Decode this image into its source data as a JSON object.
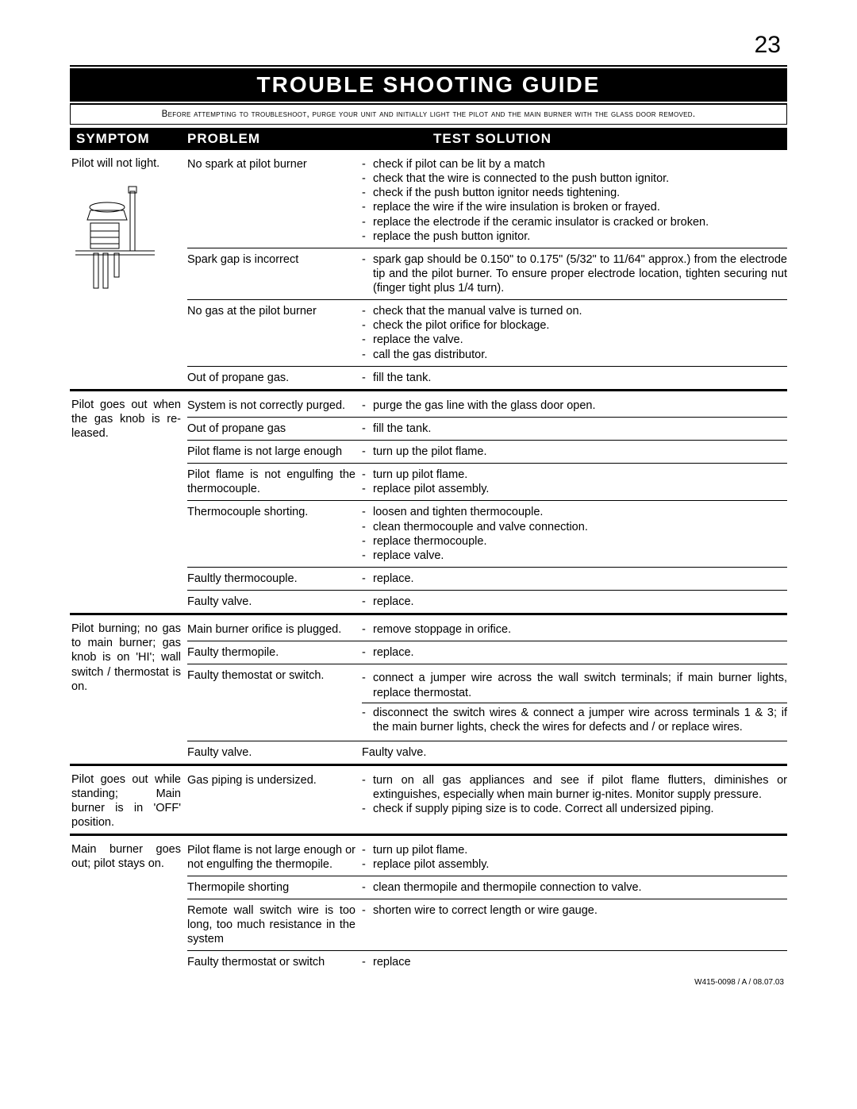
{
  "page_number": "23",
  "title": "TROUBLE SHOOTING GUIDE",
  "intro": "Before attempting to troubleshoot, purge your unit and initially light the pilot and the main burner with the glass door removed.",
  "headers": {
    "symptom": "SYMPTOM",
    "problem": "PROBLEM",
    "solution": "TEST SOLUTION"
  },
  "footer": "W415-0098 / A / 08.07.03",
  "sections": [
    {
      "symptom": "Pilot will not light.",
      "has_diagram": true,
      "rows": [
        {
          "problem": "No spark at pilot burner",
          "solutions": [
            "check if pilot can be lit by a match",
            "check that the wire is connected to the push button ignitor.",
            "check if the push button ignitor needs tightening.",
            "replace the wire if the wire insulation is broken or frayed.",
            "replace the electrode if the ceramic insulator is cracked or broken.",
            "replace the push button ignitor."
          ]
        },
        {
          "problem": "Spark gap is incorrect",
          "solutions": [
            "spark gap should be 0.150\" to 0.175\" (5/32\" to 11/64\" approx.) from the electrode tip and the pilot burner. To ensure proper electrode location, tighten securing nut (finger tight plus 1/4 turn)."
          ]
        },
        {
          "problem": "No gas at the pilot burner",
          "solutions": [
            "check that the manual valve is turned on.",
            "check the pilot orifice for blockage.",
            "replace the valve.",
            "call the gas distributor."
          ]
        },
        {
          "problem": "Out of propane gas.",
          "solutions": [
            "fill the tank."
          ]
        }
      ]
    },
    {
      "symptom": "Pilot goes out when the gas knob is re-leased.",
      "rows": [
        {
          "problem": "System is not correctly purged.",
          "solutions": [
            "purge the gas line with the glass door open."
          ]
        },
        {
          "problem": "Out of propane gas",
          "solutions": [
            "fill the tank."
          ]
        },
        {
          "problem": "Pilot flame is not large enough",
          "solutions": [
            "turn up the pilot flame."
          ]
        },
        {
          "problem": "Pilot flame is not engulfing the thermocouple.",
          "solutions": [
            "turn up pilot flame.",
            "replace pilot assembly."
          ]
        },
        {
          "problem": "Thermocouple shorting.",
          "solutions": [
            "loosen and tighten thermocouple.",
            "clean thermocouple and valve connection.",
            "replace thermocouple.",
            "replace valve."
          ]
        },
        {
          "problem": "Faultly thermocouple.",
          "solutions": [
            "replace."
          ]
        },
        {
          "problem": "Faulty valve.",
          "solutions": [
            "replace."
          ]
        }
      ]
    },
    {
      "symptom": "Pilot burning; no gas to main burner; gas knob is on 'HI'; wall switch / thermostat is on.",
      "rows": [
        {
          "problem": "Main burner orifice is plugged.",
          "solutions": [
            "remove stoppage in orifice."
          ]
        },
        {
          "problem": "Faulty thermopile.",
          "solutions": [
            "replace."
          ]
        },
        {
          "problem": "Faulty themostat or switch.",
          "solution_blocks": [
            [
              "connect a jumper wire across the wall switch terminals; if main burner lights, replace thermostat."
            ],
            [
              "disconnect the switch wires & connect a jumper wire across terminals 1 & 3; if the main burner lights, check the wires for defects and / or replace wires."
            ]
          ]
        },
        {
          "problem": "Faulty valve.",
          "plain_solution": "Faulty valve."
        }
      ]
    },
    {
      "symptom": "Pilot goes out while standing; Main burner is in 'OFF' position.",
      "rows": [
        {
          "problem": "Gas piping is undersized.",
          "solutions": [
            "turn on all gas appliances and see if pilot flame flutters, diminishes or extinguishes, especially when main burner ig-nites. Monitor supply pressure.",
            "check if supply piping size is to code. Correct all undersized piping."
          ]
        }
      ]
    },
    {
      "symptom": "Main burner goes out; pilot stays on.",
      "rows": [
        {
          "problem": "Pilot flame is not large enough or not engulfing the thermopile.",
          "solutions": [
            "turn up pilot flame.",
            "replace pilot assembly."
          ]
        },
        {
          "problem": "Thermopile shorting",
          "solutions": [
            "clean thermopile and thermopile connection to valve."
          ]
        },
        {
          "problem": "Remote wall switch wire is too long, too much resistance in the system",
          "solutions": [
            "shorten wire to correct length or wire gauge."
          ]
        },
        {
          "problem": "Faulty thermostat or switch",
          "solutions": [
            "replace"
          ]
        }
      ]
    }
  ]
}
